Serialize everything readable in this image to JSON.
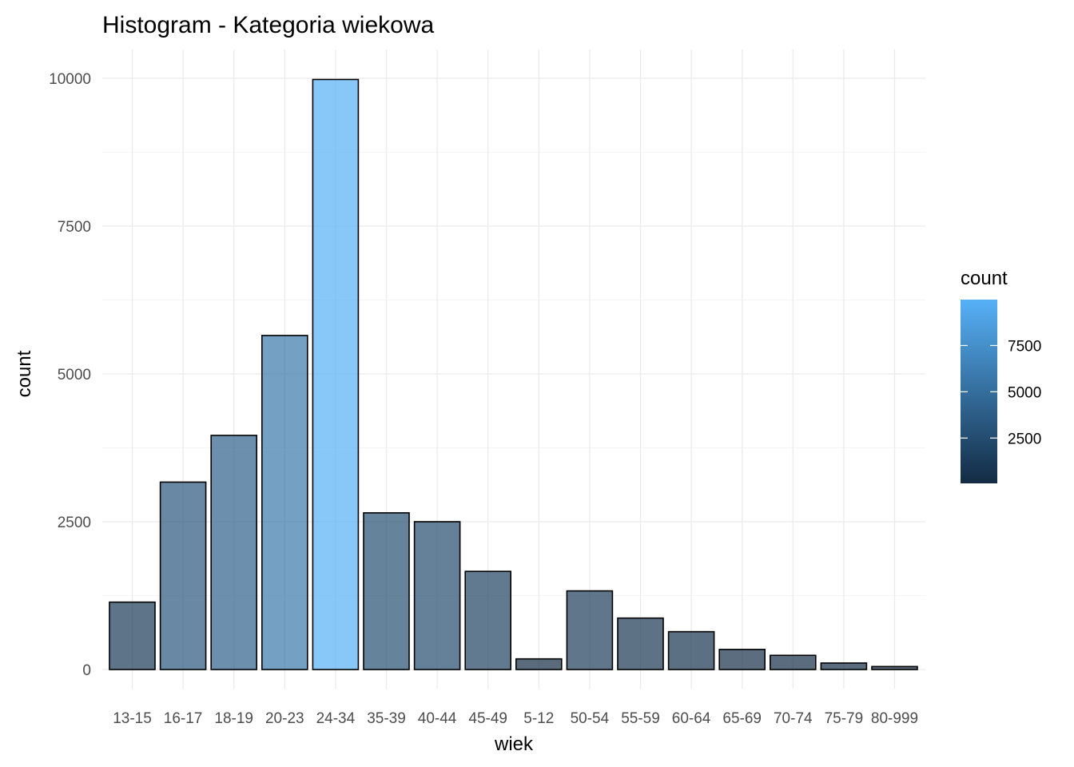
{
  "chart_data": {
    "type": "bar",
    "title": "Histogram - Kategoria wiekowa",
    "xlabel": "wiek",
    "ylabel": "count",
    "categories": [
      "13-15",
      "16-17",
      "18-19",
      "20-23",
      "24-34",
      "35-39",
      "40-44",
      "45-49",
      "5-12",
      "50-54",
      "55-59",
      "60-64",
      "65-69",
      "70-74",
      "75-79",
      "80-999"
    ],
    "values": [
      1140,
      3170,
      3960,
      5650,
      9980,
      2650,
      2500,
      1660,
      180,
      1330,
      870,
      640,
      340,
      240,
      110,
      50
    ],
    "ylim": [
      0,
      10000
    ],
    "yticks": [
      0,
      2500,
      5000,
      7500,
      10000
    ],
    "grid": true,
    "legend": {
      "title": "count",
      "placement": "right",
      "ticks": [
        2500,
        5000,
        7500
      ],
      "low_color": "#132B43",
      "high_color": "#56B1F7"
    },
    "bar_outline_color": "#000000",
    "bar_alpha": 0.7
  }
}
